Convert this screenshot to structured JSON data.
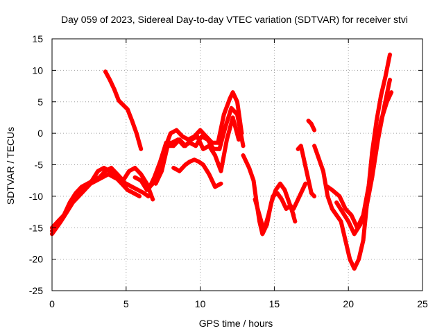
{
  "chart_data": {
    "type": "scatter",
    "title": "Day 059 of 2023, Sidereal Day-to-day VTEC variation (SDTVAR) for receiver stvi",
    "xlabel": "GPS time / hours",
    "ylabel": "SDTVAR / TECUs",
    "xlim": [
      0,
      25
    ],
    "ylim": [
      -25,
      15
    ],
    "x_ticks": [
      0,
      5,
      10,
      15,
      20,
      25
    ],
    "y_ticks": [
      -25,
      -20,
      -15,
      -10,
      -5,
      0,
      5,
      10,
      15
    ],
    "grid": true,
    "marker": "plus",
    "color": "#ff0000",
    "series": [
      {
        "x": [
          0.0,
          0.3,
          0.6,
          1.0,
          1.4,
          1.8,
          2.2,
          2.6,
          3.0,
          3.4,
          3.8,
          4.2,
          4.6,
          5.0,
          5.4,
          5.8,
          6.2,
          6.5
        ],
        "y": [
          -16,
          -15,
          -14,
          -12.5,
          -11,
          -10,
          -9,
          -8,
          -7.5,
          -7,
          -6.5,
          -7,
          -7.5,
          -8,
          -8.5,
          -9,
          -9.5,
          -10
        ]
      },
      {
        "x": [
          0.0,
          0.4,
          0.8,
          1.2,
          1.6,
          2.0,
          2.4,
          2.8,
          3.2,
          3.6,
          4.0,
          4.4,
          4.8,
          5.2,
          5.6,
          6.0,
          6.4,
          6.8
        ],
        "y": [
          -15,
          -14,
          -13,
          -11,
          -9.5,
          -8.5,
          -8,
          -7.5,
          -7,
          -6,
          -5.5,
          -6.5,
          -7.5,
          -6,
          -5.5,
          -6.5,
          -8,
          -10.5
        ]
      },
      {
        "x": [
          0.0,
          0.3,
          0.7,
          1.1,
          1.5,
          1.9,
          2.3,
          2.7,
          3.1,
          3.5,
          3.9,
          4.3,
          4.7,
          5.1,
          5.5,
          5.9
        ],
        "y": [
          -15.5,
          -14.5,
          -13.5,
          -12,
          -10.5,
          -9.5,
          -8.5,
          -7.5,
          -6,
          -5.5,
          -6,
          -7,
          -8,
          -9,
          -9.5,
          -10
        ]
      },
      {
        "x": [
          3.6,
          3.9,
          4.2,
          4.5,
          4.8,
          5.1,
          5.4,
          5.7,
          6.0
        ],
        "y": [
          9.8,
          8.5,
          7,
          5.2,
          4.5,
          3.8,
          2,
          0,
          -2.5
        ]
      },
      {
        "x": [
          5.6,
          6.0,
          6.4,
          6.8,
          7.2,
          7.6,
          8.0,
          8.4,
          8.8,
          9.2,
          9.6,
          10.0,
          10.4,
          10.8,
          11.2,
          11.6,
          12.0,
          12.2,
          12.5,
          12.8
        ],
        "y": [
          -7,
          -7.5,
          -9,
          -8,
          -6,
          -2.5,
          0,
          0.5,
          -0.5,
          -1,
          -0.5,
          0.5,
          -0.5,
          -1.5,
          -1.5,
          3,
          5.5,
          6.5,
          5,
          0
        ]
      },
      {
        "x": [
          6.5,
          6.9,
          7.3,
          7.7,
          8.1,
          8.5,
          8.9,
          9.3,
          9.7,
          10.1,
          10.5,
          10.9,
          11.3,
          11.7,
          12.1,
          12.5,
          12.9
        ],
        "y": [
          -9,
          -7,
          -4.5,
          -1.5,
          -1.5,
          -1,
          -2,
          -1.5,
          -2,
          -0.5,
          -1,
          -2.5,
          -2.5,
          1,
          4,
          3,
          -2
        ]
      },
      {
        "x": [
          7.0,
          7.4,
          7.8,
          8.2,
          8.6,
          9.0,
          9.4,
          9.8,
          10.2,
          10.6,
          11.0,
          11.4,
          11.8,
          12.2,
          12.6
        ],
        "y": [
          -8,
          -6,
          -2,
          -2,
          -1,
          -2,
          -1,
          -0.5,
          -2.5,
          -2,
          -3.5,
          -6,
          -1,
          2.5,
          -1
        ]
      },
      {
        "x": [
          8.2,
          8.6,
          9.0,
          9.3,
          9.6,
          9.9,
          10.2,
          10.6,
          11.0,
          11.4
        ],
        "y": [
          -5.5,
          -6,
          -5,
          -4.5,
          -4.2,
          -4.5,
          -5,
          -6.5,
          -8.5,
          -8
        ]
      },
      {
        "x": [
          12.9,
          13.3,
          13.6,
          13.8,
          14.0,
          14.2,
          14.5,
          14.8,
          15.1,
          15.4,
          15.7,
          16.0,
          16.3
        ],
        "y": [
          -3.5,
          -5.5,
          -7.5,
          -11,
          -14,
          -16,
          -14.5,
          -11,
          -9,
          -8,
          -9,
          -11,
          -13
        ]
      },
      {
        "x": [
          13.7,
          14.0,
          14.3,
          14.6,
          14.9,
          15.2,
          15.5,
          15.8,
          16.1,
          16.4
        ],
        "y": [
          -10.5,
          -13,
          -15.5,
          -13,
          -10,
          -9.5,
          -10.5,
          -12,
          -11.5,
          -14
        ]
      },
      {
        "x": [
          16.3,
          16.6,
          16.9,
          17.1
        ],
        "y": [
          -12,
          -10.5,
          -9,
          -8
        ]
      },
      {
        "x": [
          17.3,
          17.5,
          17.6,
          17.7
        ],
        "y": [
          2,
          1.5,
          1,
          0.5
        ]
      },
      {
        "x": [
          16.6,
          16.8,
          17.5,
          17.7
        ],
        "y": [
          -2.5,
          -2,
          -9.5,
          -10
        ]
      },
      {
        "x": [
          17.7,
          18.0,
          18.3,
          18.6,
          18.9,
          19.2,
          19.5,
          19.8,
          20.1,
          20.4,
          20.7,
          21.0,
          21.3,
          21.6,
          21.9,
          22.2,
          22.5,
          22.8
        ],
        "y": [
          -2,
          -4,
          -6,
          -10,
          -12,
          -13,
          -14,
          -17,
          -20,
          -21.5,
          -20,
          -17,
          -10,
          -3,
          2,
          6,
          9,
          12.5
        ]
      },
      {
        "x": [
          19.2,
          19.6,
          20.0,
          20.4,
          20.8,
          21.2,
          21.6,
          22.0,
          22.4,
          22.8
        ],
        "y": [
          -11,
          -12.5,
          -14,
          -16,
          -14.5,
          -12,
          -7,
          -1,
          4,
          8.5
        ]
      },
      {
        "x": [
          18.6,
          18.9,
          19.4,
          19.8,
          20.2,
          20.6,
          21.0,
          21.4,
          21.8,
          22.2,
          22.6,
          22.9
        ],
        "y": [
          -8.5,
          -9,
          -10,
          -12,
          -13,
          -15,
          -13,
          -8,
          -3,
          2,
          5,
          6.5
        ]
      }
    ]
  }
}
